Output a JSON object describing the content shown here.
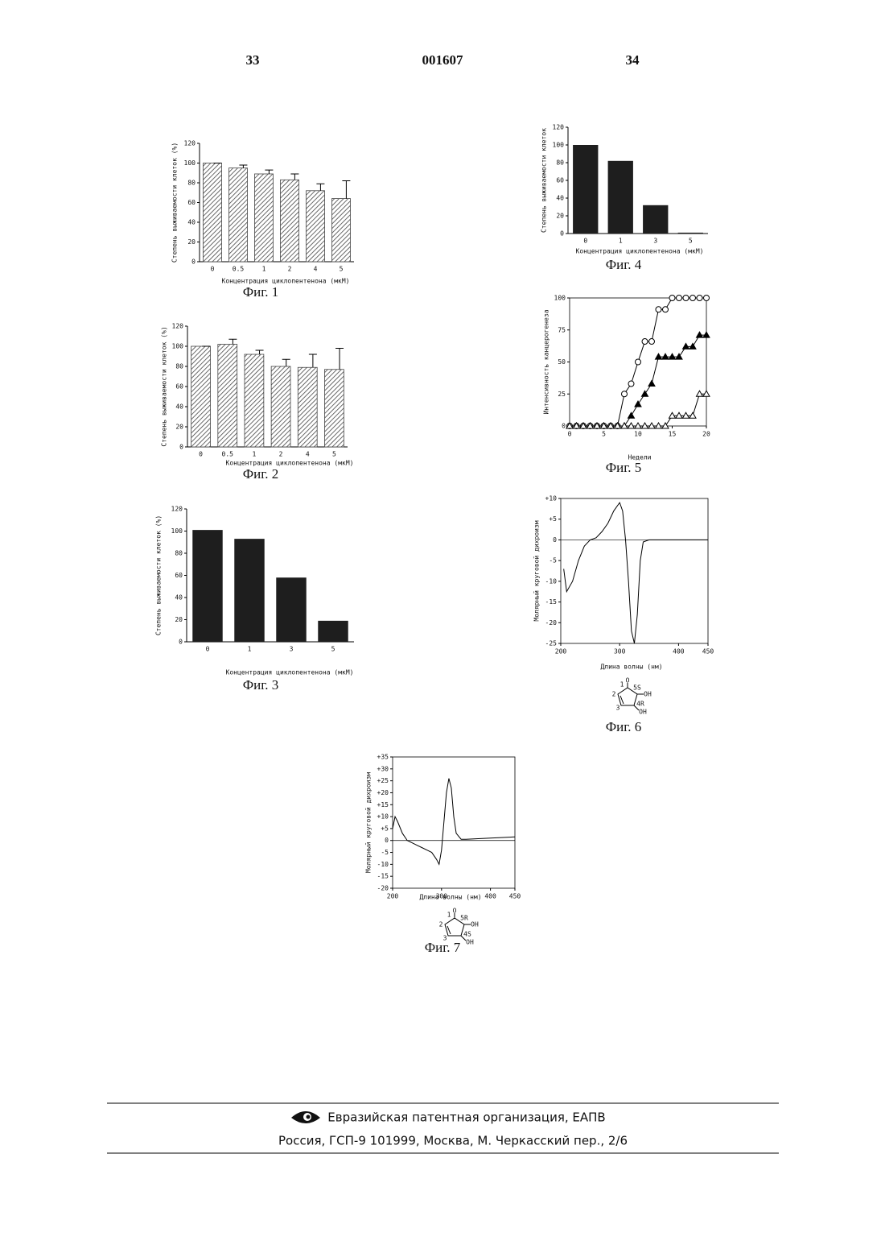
{
  "header": {
    "left": "33",
    "center": "001607",
    "right": "34"
  },
  "chart_data": [
    {
      "type": "bar",
      "bar_style": "hatched",
      "color": "#444",
      "y_label": "Степень выживаемости клеток (%)",
      "x_label": "Концентрация циклопентенона (мкМ)",
      "caption": "Фиг. 1",
      "categories": [
        "0",
        "0.5",
        "1",
        "2",
        "4",
        "5"
      ],
      "values": [
        100,
        95,
        89,
        83,
        72,
        64
      ],
      "errors": [
        0,
        3,
        4,
        6,
        7,
        18
      ],
      "ylim": [
        0,
        120
      ],
      "yticks": [
        0,
        20,
        40,
        60,
        80,
        100,
        120
      ]
    },
    {
      "type": "bar",
      "bar_style": "hatched",
      "color": "#444",
      "y_label": "Степень выживаемости клеток (%)",
      "x_label": "Концентрация циклопентенона (мкМ)",
      "caption": "Фиг. 2",
      "categories": [
        "0",
        "0.5",
        "1",
        "2",
        "4",
        "5"
      ],
      "values": [
        100,
        102,
        92,
        80,
        79,
        77
      ],
      "errors": [
        0,
        5,
        4,
        7,
        13,
        21
      ],
      "ylim": [
        0,
        120
      ],
      "yticks": [
        0,
        20,
        40,
        60,
        80,
        100,
        120
      ]
    },
    {
      "type": "bar",
      "bar_style": "solid",
      "color": "#1e1e1e",
      "y_label": "Степень выживаемости клеток (%)",
      "x_label": "Концентрация циклопентенона (мкМ)",
      "caption": "Фиг. 3",
      "categories": [
        "0",
        "1",
        "3",
        "5"
      ],
      "values": [
        101,
        93,
        58,
        19
      ],
      "ylim": [
        0,
        120
      ],
      "yticks": [
        0,
        20,
        40,
        60,
        80,
        100,
        120
      ]
    },
    {
      "type": "bar",
      "bar_style": "solid",
      "color": "#1e1e1e",
      "y_label": "Степень выживаемости клеток",
      "x_label": "Концентрация циклопентенона (мкМ)",
      "caption": "Фиг. 4",
      "categories": [
        "0",
        "1",
        "3",
        "5"
      ],
      "values": [
        100,
        82,
        32,
        1
      ],
      "ylim": [
        0,
        120
      ],
      "yticks": [
        0,
        20,
        40,
        60,
        80,
        100,
        120
      ]
    },
    {
      "type": "line",
      "y_label": "Интенсивность канцерогенеза",
      "x_label": "Недели",
      "caption": "Фиг. 5",
      "x": [
        0,
        1,
        2,
        3,
        4,
        5,
        6,
        7,
        8,
        9,
        10,
        11,
        12,
        13,
        14,
        15,
        16,
        17,
        18,
        19,
        20
      ],
      "series": [
        {
          "marker": "circle-open",
          "color": "#000",
          "values": [
            0,
            0,
            0,
            0,
            0,
            0,
            0,
            0,
            25,
            33,
            50,
            66,
            66,
            91,
            91,
            100,
            100,
            100,
            100,
            100,
            100
          ]
        },
        {
          "marker": "triangle-filled",
          "color": "#000",
          "values": [
            0,
            0,
            0,
            0,
            0,
            0,
            0,
            0,
            0,
            8,
            17,
            25,
            33,
            54,
            54,
            54,
            54,
            62,
            62,
            71,
            71
          ]
        },
        {
          "marker": "triangle-open",
          "color": "#000",
          "values": [
            0,
            0,
            0,
            0,
            0,
            0,
            0,
            0,
            0,
            0,
            0,
            0,
            0,
            0,
            0,
            8,
            8,
            8,
            8,
            25,
            25
          ]
        }
      ],
      "xlim": [
        0,
        20
      ],
      "xticks": [
        0,
        5,
        10,
        15,
        20
      ],
      "ylim": [
        0,
        100
      ],
      "yticks": [
        0,
        25,
        50,
        75,
        100
      ]
    },
    {
      "type": "line",
      "y_label": "Молярный круговой дихроизм",
      "x_label": "Длина волны (нм)",
      "caption": "Фиг. 6",
      "structure_labels": [
        "1",
        "O",
        "5S",
        "OH",
        "2",
        "3",
        "4R",
        "OH"
      ],
      "x": [
        205,
        210,
        220,
        230,
        240,
        250,
        260,
        270,
        280,
        290,
        300,
        305,
        310,
        315,
        320,
        325,
        330,
        335,
        340,
        350,
        400,
        450
      ],
      "series": [
        {
          "color": "#000",
          "values": [
            -7,
            -12.5,
            -10,
            -5,
            -1.5,
            0,
            0.5,
            2,
            4,
            7,
            9,
            7,
            0,
            -10,
            -22,
            -25,
            -18,
            -5,
            -0.5,
            0,
            0,
            0
          ]
        }
      ],
      "xlim": [
        200,
        450
      ],
      "xticks": [
        200,
        300,
        400,
        450
      ],
      "ylim": [
        -25,
        10
      ],
      "yticks": [
        {
          "value": 10,
          "label": "+10"
        },
        {
          "value": 5,
          "label": "+5"
        },
        0,
        -5,
        -10,
        -15,
        -20,
        -25
      ]
    },
    {
      "type": "line",
      "y_label": "Молярный круговой дихроизм",
      "x_label": "Длина волны (нм)",
      "caption": "Фиг. 7",
      "structure_labels": [
        "1",
        "O",
        "5R",
        "OH",
        "2",
        "3",
        "4S",
        "OH"
      ],
      "x": [
        200,
        205,
        210,
        220,
        230,
        240,
        250,
        260,
        270,
        280,
        290,
        295,
        300,
        305,
        310,
        315,
        320,
        325,
        330,
        340,
        350,
        400,
        450
      ],
      "series": [
        {
          "color": "#000",
          "values": [
            5,
            10,
            8,
            3,
            0,
            -1,
            -2,
            -3,
            -4,
            -5,
            -8,
            -10,
            -4,
            8,
            20,
            26,
            22,
            10,
            3,
            0.5,
            0.5,
            1,
            1.5
          ]
        }
      ],
      "xlim": [
        200,
        450
      ],
      "xticks": [
        200,
        300,
        400,
        450
      ],
      "ylim": [
        -20,
        35
      ],
      "yticks": [
        {
          "value": 35,
          "label": "+35"
        },
        {
          "value": 30,
          "label": "+30"
        },
        {
          "value": 25,
          "label": "+25"
        },
        {
          "value": 20,
          "label": "+20"
        },
        {
          "value": 15,
          "label": "+15"
        },
        {
          "value": 10,
          "label": "+10"
        },
        {
          "value": 5,
          "label": "+5"
        },
        0,
        -5,
        -10,
        -15,
        -20
      ]
    }
  ],
  "footer": {
    "organization": "Евразийская патентная организация, ЕАПВ",
    "address": "Россия, ГСП-9 101999, Москва, М. Черкасский пер., 2/6"
  }
}
